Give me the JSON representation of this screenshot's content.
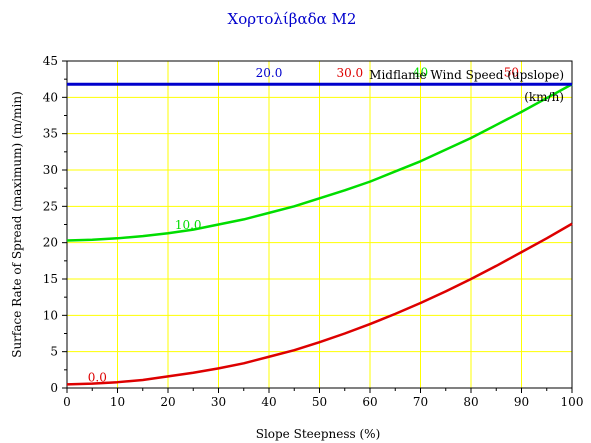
{
  "chart_data": {
    "type": "line",
    "title": "Χορτολίβαδα Μ2",
    "xlabel": "Slope Steepness (%)",
    "ylabel": "Surface Rate of Spread (maximum) (m/min)",
    "xlim": [
      0,
      100
    ],
    "ylim": [
      0,
      45
    ],
    "x_ticks": [
      "0",
      "10",
      "20",
      "30",
      "40",
      "50",
      "60",
      "70",
      "80",
      "90",
      "100"
    ],
    "y_ticks": [
      "0",
      "5",
      "10",
      "15",
      "20",
      "25",
      "30",
      "35",
      "40",
      "45"
    ],
    "grid": true,
    "legend_title": "Midflame Wind Speed (upslope)",
    "legend_units": "(km/h)",
    "series": [
      {
        "name": "0.0",
        "color": "#dd0000",
        "x": [
          0,
          5,
          10,
          15,
          20,
          25,
          30,
          35,
          40,
          45,
          50,
          55,
          60,
          65,
          70,
          75,
          80,
          85,
          90,
          95,
          100
        ],
        "y": [
          0.5,
          0.6,
          0.8,
          1.1,
          1.6,
          2.1,
          2.7,
          3.4,
          4.3,
          5.2,
          6.3,
          7.5,
          8.8,
          10.2,
          11.7,
          13.3,
          15.0,
          16.8,
          18.7,
          20.6,
          22.6
        ]
      },
      {
        "name": "10.0",
        "color": "#00dd00",
        "x": [
          0,
          5,
          10,
          15,
          20,
          25,
          30,
          35,
          40,
          45,
          50,
          55,
          60,
          65,
          70,
          75,
          80,
          85,
          90,
          95,
          100
        ],
        "y": [
          20.3,
          20.4,
          20.6,
          20.9,
          21.3,
          21.8,
          22.5,
          23.2,
          24.1,
          25.0,
          26.1,
          27.2,
          28.4,
          29.8,
          31.2,
          32.8,
          34.4,
          36.2,
          38.0,
          39.9,
          41.8
        ]
      },
      {
        "name": "20.0",
        "color": "#0000cc",
        "x": [
          0,
          100
        ],
        "y": [
          41.8,
          41.8
        ]
      },
      {
        "name": "30.0",
        "color": "#dd0000",
        "x": [
          0,
          100
        ],
        "y": [
          41.8,
          41.8
        ]
      },
      {
        "name": "40",
        "color": "#00dd00",
        "x": [
          0,
          100
        ],
        "y": [
          41.8,
          41.8
        ]
      },
      {
        "name": "50",
        "color": "#dd0000",
        "x": [
          0,
          100
        ],
        "y": [
          41.8,
          41.8
        ]
      }
    ]
  }
}
